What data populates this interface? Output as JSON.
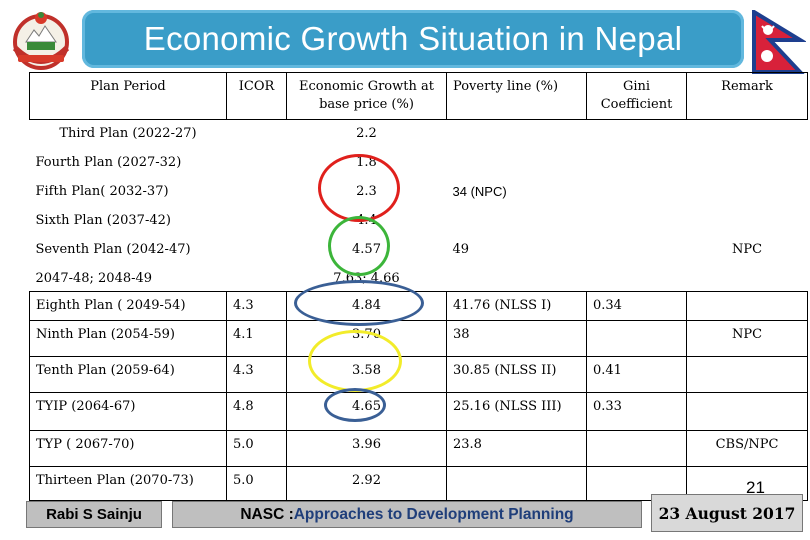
{
  "title": "Economic Growth Situation  in Nepal",
  "headers": {
    "plan_period": "Plan Period",
    "icor": "ICOR",
    "growth": "Economic Growth at base price (%)",
    "poverty": "Poverty line (%)",
    "gini": "Gini Coefficient",
    "remark": "Remark"
  },
  "rows": [
    {
      "plan": "Third Plan (2022-27)",
      "icor": "",
      "growth": "2.2",
      "poverty": "",
      "gini": "",
      "remark": ""
    },
    {
      "plan": "Fourth Plan (2027-32)",
      "icor": "",
      "growth": "1.8",
      "poverty": "",
      "gini": "",
      "remark": ""
    },
    {
      "plan": "Fifth Plan( 2032-37)",
      "icor": "",
      "growth": "2.3",
      "poverty": "34 (NPC)",
      "gini": "",
      "remark": ""
    },
    {
      "plan": "Sixth Plan (2037-42)",
      "icor": "",
      "growth": "4.4",
      "poverty": "",
      "gini": "",
      "remark": ""
    },
    {
      "plan": "Seventh Plan (2042-47)",
      "icor": "",
      "growth": "4.57",
      "poverty": "49",
      "gini": "",
      "remark": "NPC"
    },
    {
      "plan": "2047-48; 2048-49",
      "icor": "",
      "growth": "7.63; 4.66",
      "poverty": "",
      "gini": "",
      "remark": ""
    },
    {
      "plan": "Eighth Plan ( 2049-54)",
      "icor": "4.3",
      "growth": "4.84",
      "poverty": "41.76 (NLSS I)",
      "gini": "0.34",
      "remark": ""
    },
    {
      "plan": "Ninth Plan (2054-59)",
      "icor": "4.1",
      "growth": "3.70",
      "poverty": "38",
      "gini": "",
      "remark": "NPC"
    },
    {
      "plan": "Tenth Plan (2059-64)",
      "icor": "4.3",
      "growth": "3.58",
      "poverty": "30.85 (NLSS II)",
      "gini": "0.41",
      "remark": ""
    },
    {
      "plan": "TYIP (2064-67)",
      "icor": "4.8",
      "growth": "4.65",
      "poverty": "25.16  (NLSS III)",
      "gini": "0.33",
      "remark": ""
    },
    {
      "plan": "TYP ( 2067-70)",
      "icor": "5.0",
      "growth": "3.96",
      "poverty": "23.8",
      "gini": "",
      "remark": "CBS/NPC"
    },
    {
      "plan": "Thirteen Plan (2070-73)",
      "icor": "5.0",
      "growth": "2.92",
      "poverty": "",
      "gini": "",
      "remark": ""
    }
  ],
  "footer": {
    "author": "Rabi S Sainju",
    "course_prefix": "NASC : ",
    "course_title": "Approaches to Development Planning",
    "page_number": "21",
    "date": "23 August  2017"
  },
  "colors": {
    "title_bg": "#3a9dc8",
    "ellipse_red": "#e0201c",
    "ellipse_green": "#3cb53a",
    "ellipse_blue": "#3a5f95",
    "ellipse_yellow": "#f2ec2a"
  },
  "icons": {
    "emblem": "nepal-emblem-icon",
    "flag": "nepal-flag-icon"
  }
}
